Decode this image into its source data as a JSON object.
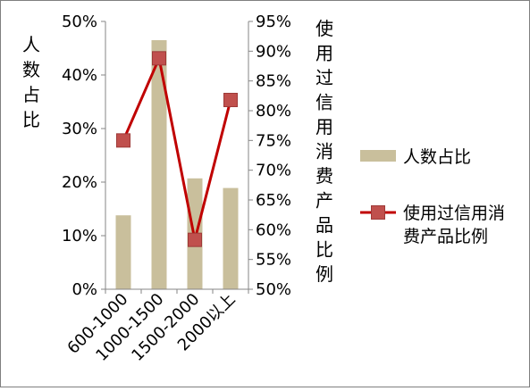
{
  "chart_data": {
    "type": "bar+line",
    "categories": [
      "600-1000",
      "1000-1500",
      "1500-2000",
      "2000以上"
    ],
    "series": [
      {
        "name": "人数占比",
        "type": "bar",
        "axis": "left",
        "values": [
          0.138,
          0.465,
          0.207,
          0.189
        ],
        "color": "#c9bf9c"
      },
      {
        "name": "使用过信用消费产品比例",
        "type": "line",
        "axis": "right",
        "values": [
          0.75,
          0.888,
          0.583,
          0.818
        ],
        "color": "#c00000",
        "marker_color": "#c0504d"
      }
    ],
    "ylabel": "人数占比",
    "y2label": "使用过信用消费产品比例",
    "ylim": [
      0,
      0.5
    ],
    "y2lim": [
      0.5,
      0.95
    ],
    "yticks": [
      "0%",
      "10%",
      "20%",
      "30%",
      "40%",
      "50%"
    ],
    "y2ticks": [
      "50%",
      "55%",
      "60%",
      "65%",
      "70%",
      "75%",
      "80%",
      "85%",
      "90%",
      "95%"
    ],
    "legend_position": "right",
    "grid": false
  }
}
